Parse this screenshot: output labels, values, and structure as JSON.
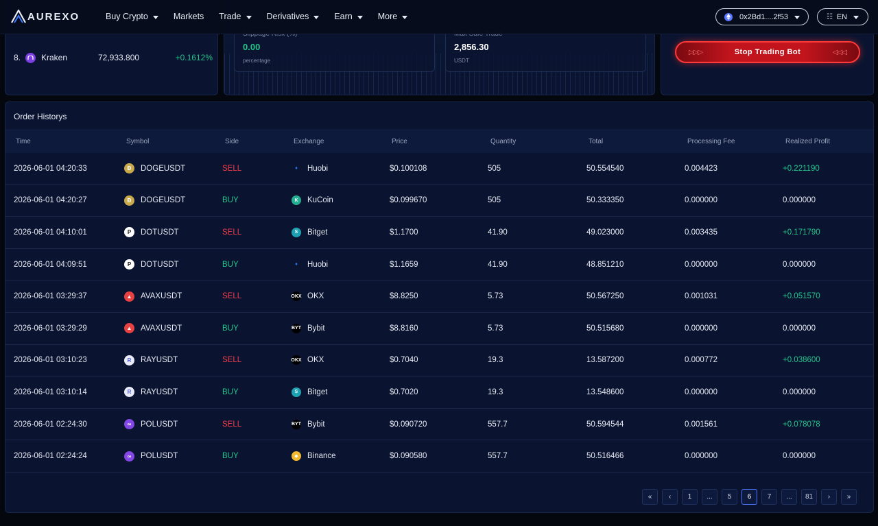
{
  "app": {
    "logo_text": "AUREXO"
  },
  "nav": {
    "items": [
      {
        "label": "Buy Crypto",
        "caret": true
      },
      {
        "label": "Markets",
        "caret": false
      },
      {
        "label": "Trade",
        "caret": true
      },
      {
        "label": "Derivatives",
        "caret": true
      },
      {
        "label": "Earn",
        "caret": true
      },
      {
        "label": "More",
        "caret": true
      }
    ],
    "wallet": "0x2Bd1....2f53",
    "language": "EN"
  },
  "top": {
    "exchange_row": {
      "rank": "8.",
      "name": "Kraken",
      "volume": "72,933.800",
      "change": "+0.1612%"
    },
    "slippage": {
      "label": "Slippage Risk (%)",
      "value": "0.00",
      "unit": "percentage"
    },
    "max_trade": {
      "label": "Max Safe Trade",
      "value": "2,856.30",
      "unit": "USDT"
    },
    "stop_button": "Stop Trading Bot"
  },
  "orders": {
    "title": "Order Historys",
    "columns": [
      "Time",
      "Symbol",
      "Side",
      "Exchange",
      "Price",
      "Quantity",
      "Total",
      "Processing Fee",
      "Realized Profit"
    ],
    "rows": [
      {
        "time": "2026-06-01 04:20:33",
        "symbol": "DOGEUSDT",
        "coin": "doge",
        "side": "SELL",
        "exchange": "Huobi",
        "price": "$0.100108",
        "qty": "505",
        "total": "50.554540",
        "fee": "0.004423",
        "profit": "+0.221190"
      },
      {
        "time": "2026-06-01 04:20:27",
        "symbol": "DOGEUSDT",
        "coin": "doge",
        "side": "BUY",
        "exchange": "KuCoin",
        "price": "$0.099670",
        "qty": "505",
        "total": "50.333350",
        "fee": "0.000000",
        "profit": "0.000000"
      },
      {
        "time": "2026-06-01 04:10:01",
        "symbol": "DOTUSDT",
        "coin": "dot",
        "side": "SELL",
        "exchange": "Bitget",
        "price": "$1.1700",
        "qty": "41.90",
        "total": "49.023000",
        "fee": "0.003435",
        "profit": "+0.171790"
      },
      {
        "time": "2026-06-01 04:09:51",
        "symbol": "DOTUSDT",
        "coin": "dot",
        "side": "BUY",
        "exchange": "Huobi",
        "price": "$1.1659",
        "qty": "41.90",
        "total": "48.851210",
        "fee": "0.000000",
        "profit": "0.000000"
      },
      {
        "time": "2026-06-01 03:29:37",
        "symbol": "AVAXUSDT",
        "coin": "avax",
        "side": "SELL",
        "exchange": "OKX",
        "price": "$8.8250",
        "qty": "5.73",
        "total": "50.567250",
        "fee": "0.001031",
        "profit": "+0.051570"
      },
      {
        "time": "2026-06-01 03:29:29",
        "symbol": "AVAXUSDT",
        "coin": "avax",
        "side": "BUY",
        "exchange": "Bybit",
        "price": "$8.8160",
        "qty": "5.73",
        "total": "50.515680",
        "fee": "0.000000",
        "profit": "0.000000"
      },
      {
        "time": "2026-06-01 03:10:23",
        "symbol": "RAYUSDT",
        "coin": "ray",
        "side": "SELL",
        "exchange": "OKX",
        "price": "$0.7040",
        "qty": "19.3",
        "total": "13.587200",
        "fee": "0.000772",
        "profit": "+0.038600"
      },
      {
        "time": "2026-06-01 03:10:14",
        "symbol": "RAYUSDT",
        "coin": "ray",
        "side": "BUY",
        "exchange": "Bitget",
        "price": "$0.7020",
        "qty": "19.3",
        "total": "13.548600",
        "fee": "0.000000",
        "profit": "0.000000"
      },
      {
        "time": "2026-06-01 02:24:30",
        "symbol": "POLUSDT",
        "coin": "pol",
        "side": "SELL",
        "exchange": "Bybit",
        "price": "$0.090720",
        "qty": "557.7",
        "total": "50.594544",
        "fee": "0.001561",
        "profit": "+0.078078"
      },
      {
        "time": "2026-06-01 02:24:24",
        "symbol": "POLUSDT",
        "coin": "pol",
        "side": "BUY",
        "exchange": "Binance",
        "price": "$0.090580",
        "qty": "557.7",
        "total": "50.516466",
        "fee": "0.000000",
        "profit": "0.000000"
      }
    ]
  },
  "pagination": {
    "items": [
      "«",
      "‹",
      "1",
      "...",
      "5",
      "6",
      "7",
      "...",
      "81",
      "›",
      "»"
    ],
    "active": "6"
  },
  "colors": {
    "sell": "#f03c4a",
    "buy": "#22c58b",
    "accent": "#4d78ff",
    "stop": "#c2141d"
  }
}
